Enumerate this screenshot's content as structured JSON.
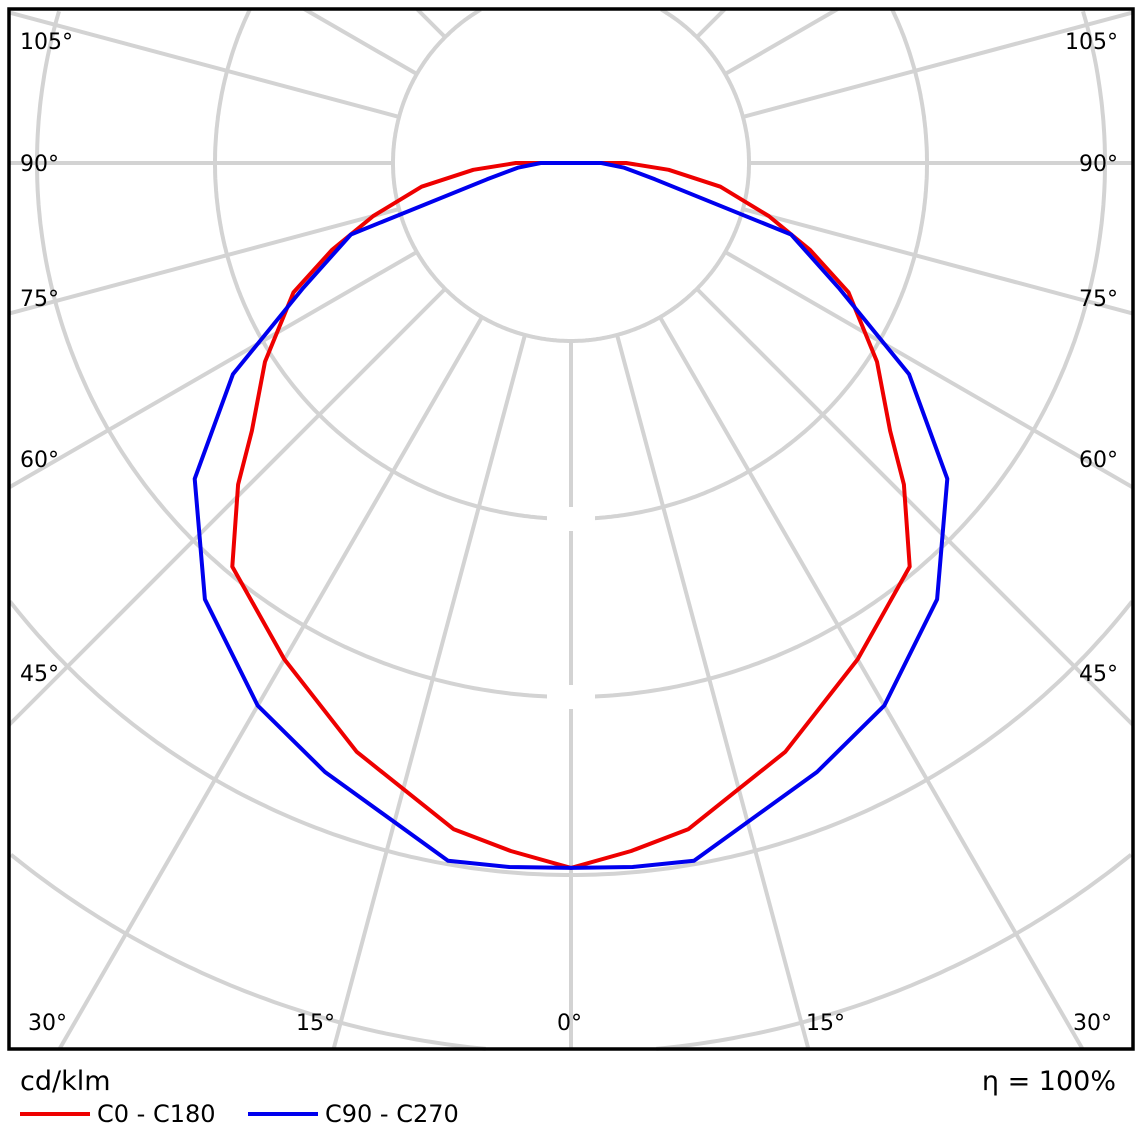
{
  "chart_data": {
    "type": "polar-line",
    "title": "",
    "unit_label": "cd/klm",
    "efficiency_label": "η = 100%",
    "radial_tick_labels": [],
    "angle_ticks": {
      "bottom": [
        "30°",
        "15°",
        "0°",
        "15°",
        "30°"
      ],
      "left": [
        "45°",
        "60°",
        "75°",
        "90°",
        "105°"
      ],
      "right": [
        "45°",
        "60°",
        "75°",
        "90°",
        "105°"
      ]
    },
    "angle_grid_step_deg": 15,
    "grid": true,
    "legend_position": "bottom-left",
    "series": [
      {
        "name": "C0 - C180",
        "color": "#ee0000",
        "points": [
          [
            0,
            3.96
          ],
          [
            5,
            3.88
          ],
          [
            10,
            3.8
          ],
          [
            20,
            3.52
          ],
          [
            30,
            3.22
          ],
          [
            40,
            2.96
          ],
          [
            46,
            2.6
          ],
          [
            50,
            2.34
          ],
          [
            57,
            2.05
          ],
          [
            65,
            1.72
          ],
          [
            70,
            1.43
          ],
          [
            75,
            1.15
          ],
          [
            81,
            0.85
          ],
          [
            86,
            0.55
          ],
          [
            90,
            0.31
          ],
          [
            91,
            0
          ]
        ]
      },
      {
        "name": "C90 - C270",
        "color": "#0000ee",
        "points": [
          [
            0,
            3.96
          ],
          [
            5,
            3.97
          ],
          [
            10,
            3.98
          ],
          [
            22,
            3.69
          ],
          [
            30,
            3.52
          ],
          [
            40,
            3.2
          ],
          [
            50,
            2.76
          ],
          [
            58,
            2.24
          ],
          [
            65,
            1.66
          ],
          [
            72,
            1.3
          ],
          [
            79,
            0.48
          ],
          [
            85,
            0.3
          ],
          [
            90,
            0.17
          ],
          [
            91,
            0
          ]
        ]
      }
    ]
  }
}
